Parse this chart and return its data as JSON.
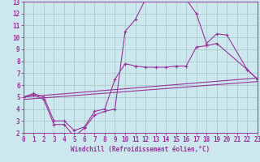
{
  "xlabel": "Windchill (Refroidissement éolien,°C)",
  "bg_color": "#cce8ee",
  "grid_color": "#aacccc",
  "line_color": "#993399",
  "xlim": [
    0,
    23
  ],
  "ylim": [
    2,
    13
  ],
  "xticks": [
    0,
    1,
    2,
    3,
    4,
    5,
    6,
    7,
    8,
    9,
    10,
    11,
    12,
    13,
    14,
    15,
    16,
    17,
    18,
    19,
    20,
    21,
    22,
    23
  ],
  "yticks": [
    2,
    3,
    4,
    5,
    6,
    7,
    8,
    9,
    10,
    11,
    12,
    13
  ],
  "series": [
    {
      "x": [
        0,
        1,
        2,
        3,
        4,
        5,
        6,
        7,
        8,
        9,
        10,
        11,
        12,
        13,
        14,
        15,
        16,
        17,
        18,
        19,
        20,
        22,
        23
      ],
      "y": [
        5.0,
        5.2,
        4.8,
        2.7,
        2.7,
        1.7,
        2.4,
        3.5,
        3.8,
        4.0,
        10.5,
        11.5,
        13.2,
        13.3,
        13.3,
        13.3,
        13.2,
        12.0,
        9.5,
        10.3,
        10.2,
        7.3,
        6.5
      ]
    },
    {
      "x": [
        0,
        1,
        2,
        3,
        4,
        5,
        6,
        7,
        8,
        9,
        10,
        11,
        12,
        13,
        14,
        15,
        16,
        17,
        18,
        19,
        22,
        23
      ],
      "y": [
        5.0,
        5.3,
        5.0,
        3.0,
        3.0,
        2.2,
        2.5,
        3.8,
        4.0,
        6.5,
        7.8,
        7.6,
        7.5,
        7.5,
        7.5,
        7.6,
        7.6,
        9.2,
        9.3,
        9.5,
        7.3,
        6.5
      ]
    },
    {
      "x": [
        0,
        23
      ],
      "y": [
        5.0,
        6.6
      ]
    },
    {
      "x": [
        0,
        23
      ],
      "y": [
        4.8,
        6.3
      ]
    }
  ]
}
